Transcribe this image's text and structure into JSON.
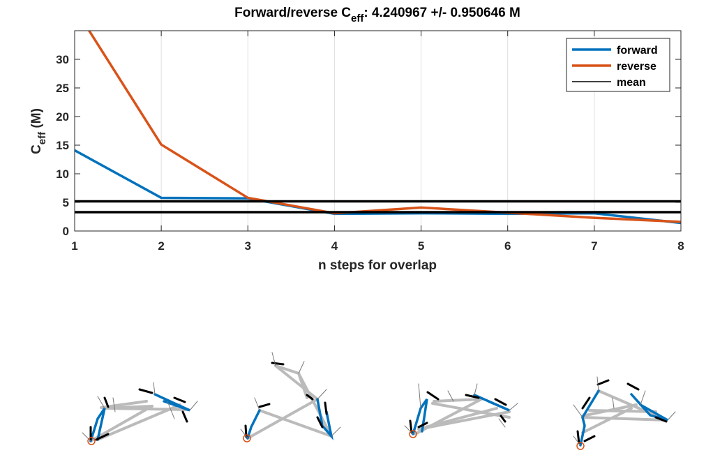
{
  "chart_data": {
    "type": "line",
    "title_main": "Forward/reverse C",
    "title_sub": "eff",
    "title_rest": ": 4.240967 +/- 0.950646 M",
    "xlabel": "n steps for overlap",
    "ylabel_main": "C",
    "ylabel_sub": "eff",
    "ylabel_rest": " (M)",
    "x": [
      1,
      2,
      3,
      4,
      5,
      6,
      7,
      8
    ],
    "xlim": [
      1,
      8
    ],
    "ylim": [
      0,
      35
    ],
    "xticks": [
      1,
      2,
      3,
      4,
      5,
      6,
      7,
      8
    ],
    "yticks": [
      0,
      5,
      10,
      15,
      20,
      25,
      30
    ],
    "grid": "vertical",
    "legend_position": "top-right",
    "series": [
      {
        "name": "forward",
        "color": "#0072BD",
        "values": [
          14.1,
          5.8,
          5.7,
          3.0,
          3.1,
          3.0,
          3.1,
          1.4
        ]
      },
      {
        "name": "reverse",
        "color": "#D95319",
        "values": [
          39.0,
          15.1,
          5.8,
          3.1,
          4.1,
          3.2,
          2.3,
          1.6
        ]
      }
    ],
    "mean": {
      "name": "mean",
      "color": "#000000",
      "values": [
        5.19,
        3.29
      ]
    }
  },
  "bottom_panels": {
    "count": 4,
    "description_icons": [
      "molecule-pathway-icon",
      "molecule-pathway-icon",
      "molecule-pathway-icon",
      "molecule-pathway-icon"
    ],
    "colors": {
      "highlight": "#0072BD",
      "backbone": "#BBBBBB",
      "marker": "#D95319"
    }
  }
}
